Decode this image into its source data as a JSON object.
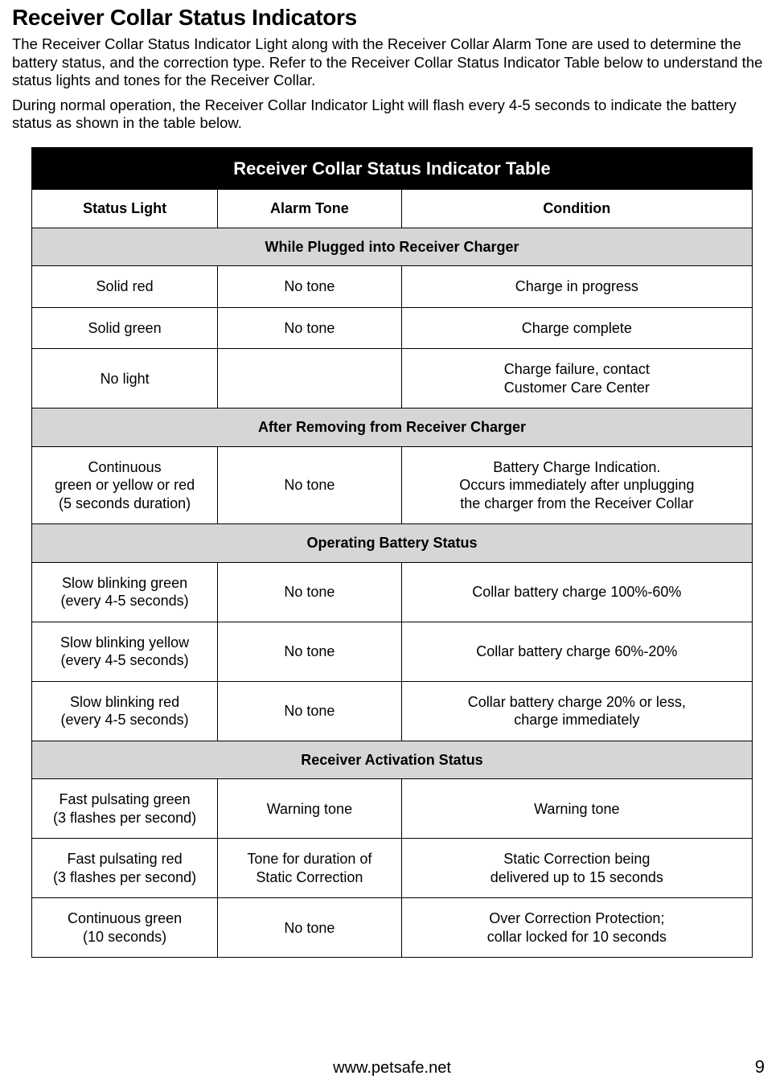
{
  "page": {
    "heading": "Receiver Collar Status Indicators",
    "para1": "The Receiver Collar Status Indicator Light along with the Receiver Collar Alarm Tone are used to determine the battery status, and the correction type. Refer to the Receiver Collar Status Indicator Table below to understand the status lights and tones for the Receiver Collar.",
    "para2": "During normal operation, the Receiver Collar Indicator Light will flash every 4-5 seconds to indicate the battery status as shown in the table below.",
    "footer_url": "www.petsafe.net",
    "page_number": "9"
  },
  "table": {
    "title": "Receiver Collar Status Indicator Table",
    "columns": {
      "status": "Status Light",
      "alarm": "Alarm Tone",
      "condition": "Condition"
    },
    "colors": {
      "title_bg": "#000000",
      "title_fg": "#ffffff",
      "section_bg": "#d6d6d6",
      "border": "#000000",
      "background": "#ffffff"
    },
    "col_widths_pct": [
      25.8,
      25.5,
      48.7
    ],
    "sections": [
      {
        "label": "While Plugged into Receiver Charger",
        "rows": [
          {
            "status": "Solid red",
            "alarm": "No tone",
            "condition": "Charge in progress"
          },
          {
            "status": "Solid green",
            "alarm": "No tone",
            "condition": "Charge complete"
          },
          {
            "status": "No light",
            "alarm": "",
            "condition": "Charge failure, contact\nCustomer Care Center"
          }
        ]
      },
      {
        "label": "After Removing from Receiver Charger",
        "rows": [
          {
            "status": "Continuous\ngreen or yellow or red\n(5 seconds duration)",
            "alarm": "No tone",
            "condition": "Battery Charge Indication.\nOccurs immediately after unplugging\nthe charger from the Receiver Collar"
          }
        ]
      },
      {
        "label": "Operating Battery Status",
        "rows": [
          {
            "status": "Slow blinking green\n(every 4-5 seconds)",
            "alarm": "No tone",
            "condition": "Collar battery charge 100%-60%"
          },
          {
            "status": "Slow blinking yellow\n(every 4-5 seconds)",
            "alarm": "No tone",
            "condition": "Collar battery charge 60%-20%"
          },
          {
            "status": "Slow blinking red\n(every 4-5 seconds)",
            "alarm": "No tone",
            "condition": "Collar battery charge 20% or less,\ncharge immediately"
          }
        ]
      },
      {
        "label": "Receiver Activation Status",
        "rows": [
          {
            "status": "Fast pulsating green\n(3 flashes per second)",
            "alarm": "Warning tone",
            "condition": "Warning tone"
          },
          {
            "status": "Fast pulsating red\n(3 flashes per second)",
            "alarm": "Tone for duration of\nStatic Correction",
            "condition": "Static Correction being\ndelivered up to 15 seconds"
          },
          {
            "status": "Continuous green\n(10 seconds)",
            "alarm": "No tone",
            "condition": "Over Correction Protection;\ncollar locked for 10 seconds"
          }
        ]
      }
    ]
  }
}
